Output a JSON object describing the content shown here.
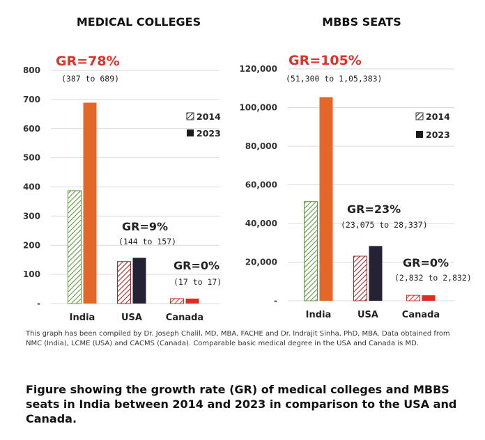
{
  "chart_data": [
    {
      "type": "bar",
      "title": "MEDICAL COLLEGES",
      "categories": [
        "India",
        "USA",
        "Canada"
      ],
      "series": [
        {
          "name": "2014",
          "values": [
            387,
            144,
            17
          ]
        },
        {
          "name": "2023",
          "values": [
            689,
            157,
            17
          ]
        }
      ],
      "ylim": [
        0,
        800
      ],
      "yticks": [
        "-",
        "100",
        "200",
        "300",
        "400",
        "500",
        "600",
        "700",
        "800"
      ],
      "legend": [
        "2014",
        "2023"
      ],
      "annotations": [
        {
          "gr": "GR=78%",
          "range": "(387 to 689)"
        },
        {
          "gr": "GR=9%",
          "range": "(144 to 157)"
        },
        {
          "gr": "GR=0%",
          "range": "(17 to 17)"
        }
      ]
    },
    {
      "type": "bar",
      "title": "MBBS SEATS",
      "categories": [
        "India",
        "USA",
        "Canada"
      ],
      "series": [
        {
          "name": "2014",
          "values": [
            51300,
            23075,
            2832
          ]
        },
        {
          "name": "2023",
          "values": [
            105383,
            28337,
            2832
          ]
        }
      ],
      "ylim": [
        0,
        120000
      ],
      "yticks": [
        "-",
        "20,000",
        "40,000",
        "60,000",
        "80,000",
        "100,000",
        "120,000"
      ],
      "legend": [
        "2014",
        "2023"
      ],
      "annotations": [
        {
          "gr": "GR=105%",
          "range": "(51,300 to 1,05,383)"
        },
        {
          "gr": "GR=23%",
          "range": "(23,075 to 28,337)"
        },
        {
          "gr": "GR=0%",
          "range": "(2,832 to 2,832)"
        }
      ]
    }
  ],
  "colors": {
    "india_2014": "#5a9a3a",
    "india_2023": "#e4672a",
    "usa_2014": "#a12a2e",
    "usa_2023": "#262236",
    "canada_2014": "#d0392b",
    "canada_2023": "#e02a22",
    "gr_red": "#e0322b",
    "gridline": "#d9d9d9"
  },
  "footnote": "This graph has been compiled by Dr. Joseph Chalil, MD, MBA, FACHE and Dr. Indrajit Sinha, PhD, MBA. Data obtained from NMC (India), LCME (USA) and CACMS (Canada). Comparable basic medical degree in the USA and Canada is MD.",
  "caption": "Figure showing the growth rate (GR) of medical colleges and MBBS seats in India between 2014 and 2023 in comparison to the USA and Canada."
}
